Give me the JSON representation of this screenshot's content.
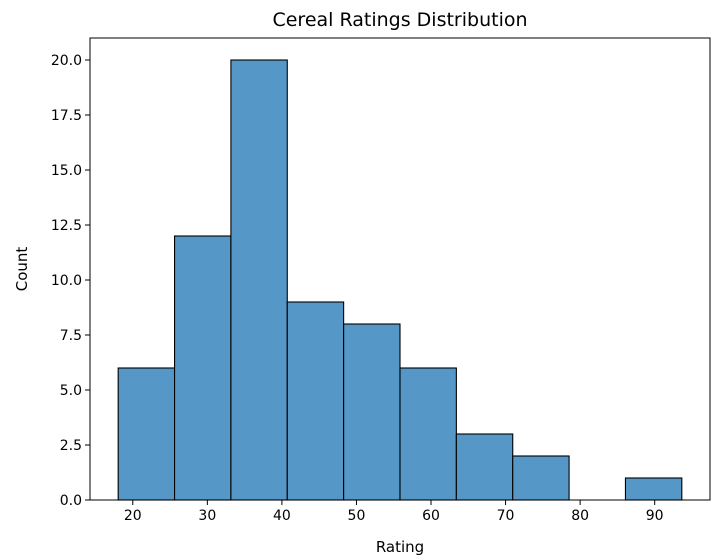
{
  "chart_data": {
    "type": "bar",
    "title": "Cereal Ratings Distribution",
    "xlabel": "Rating",
    "ylabel": "Count",
    "bin_edges": [
      18.04,
      25.6,
      33.16,
      40.72,
      48.28,
      55.84,
      63.4,
      70.96,
      78.52,
      86.08,
      93.64
    ],
    "values": [
      6,
      12,
      20,
      9,
      8,
      6,
      3,
      2,
      0,
      1
    ],
    "xlim": [
      14.26,
      97.42
    ],
    "ylim": [
      0,
      21
    ],
    "xticks": [
      20,
      30,
      40,
      50,
      60,
      70,
      80,
      90
    ],
    "yticks": [
      0,
      2.5,
      5,
      7.5,
      10,
      12.5,
      15,
      17.5,
      20
    ],
    "xtick_labels": [
      "20",
      "30",
      "40",
      "50",
      "60",
      "70",
      "80",
      "90"
    ],
    "ytick_labels": [
      "0.0",
      "2.5",
      "5.0",
      "7.5",
      "10.0",
      "12.5",
      "15.0",
      "17.5",
      "20.0"
    ],
    "grid": false,
    "bar_color": "#5597c6",
    "edge_color": "#000000"
  }
}
